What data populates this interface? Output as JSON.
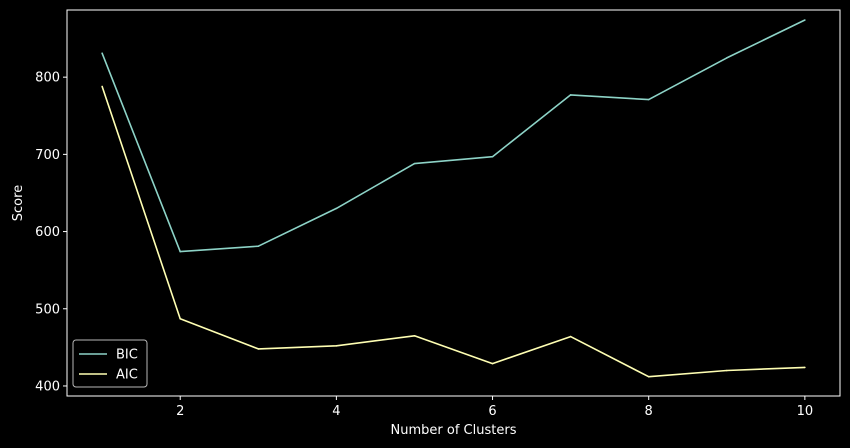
{
  "chart_data": {
    "type": "line",
    "title": "",
    "xlabel": "Number of Clusters",
    "ylabel": "Score",
    "xlim": [
      0.55,
      10.45
    ],
    "ylim": [
      387,
      887
    ],
    "xticks": [
      2,
      4,
      6,
      8,
      10
    ],
    "yticks": [
      400,
      500,
      600,
      700,
      800
    ],
    "grid": false,
    "legend_position": "bottom-left",
    "background": "#000000",
    "axis_color": "#ffffff",
    "x": [
      1,
      2,
      3,
      4,
      5,
      6,
      7,
      8,
      9,
      10
    ],
    "series": [
      {
        "name": "BIC",
        "color": "#8dd3c7",
        "values": [
          831,
          574,
          581,
          630,
          688,
          697,
          777,
          771,
          825,
          874
        ]
      },
      {
        "name": "AIC",
        "color": "#ffffb3",
        "values": [
          788,
          487,
          448,
          452,
          465,
          429,
          464,
          412,
          420,
          424
        ]
      }
    ]
  }
}
